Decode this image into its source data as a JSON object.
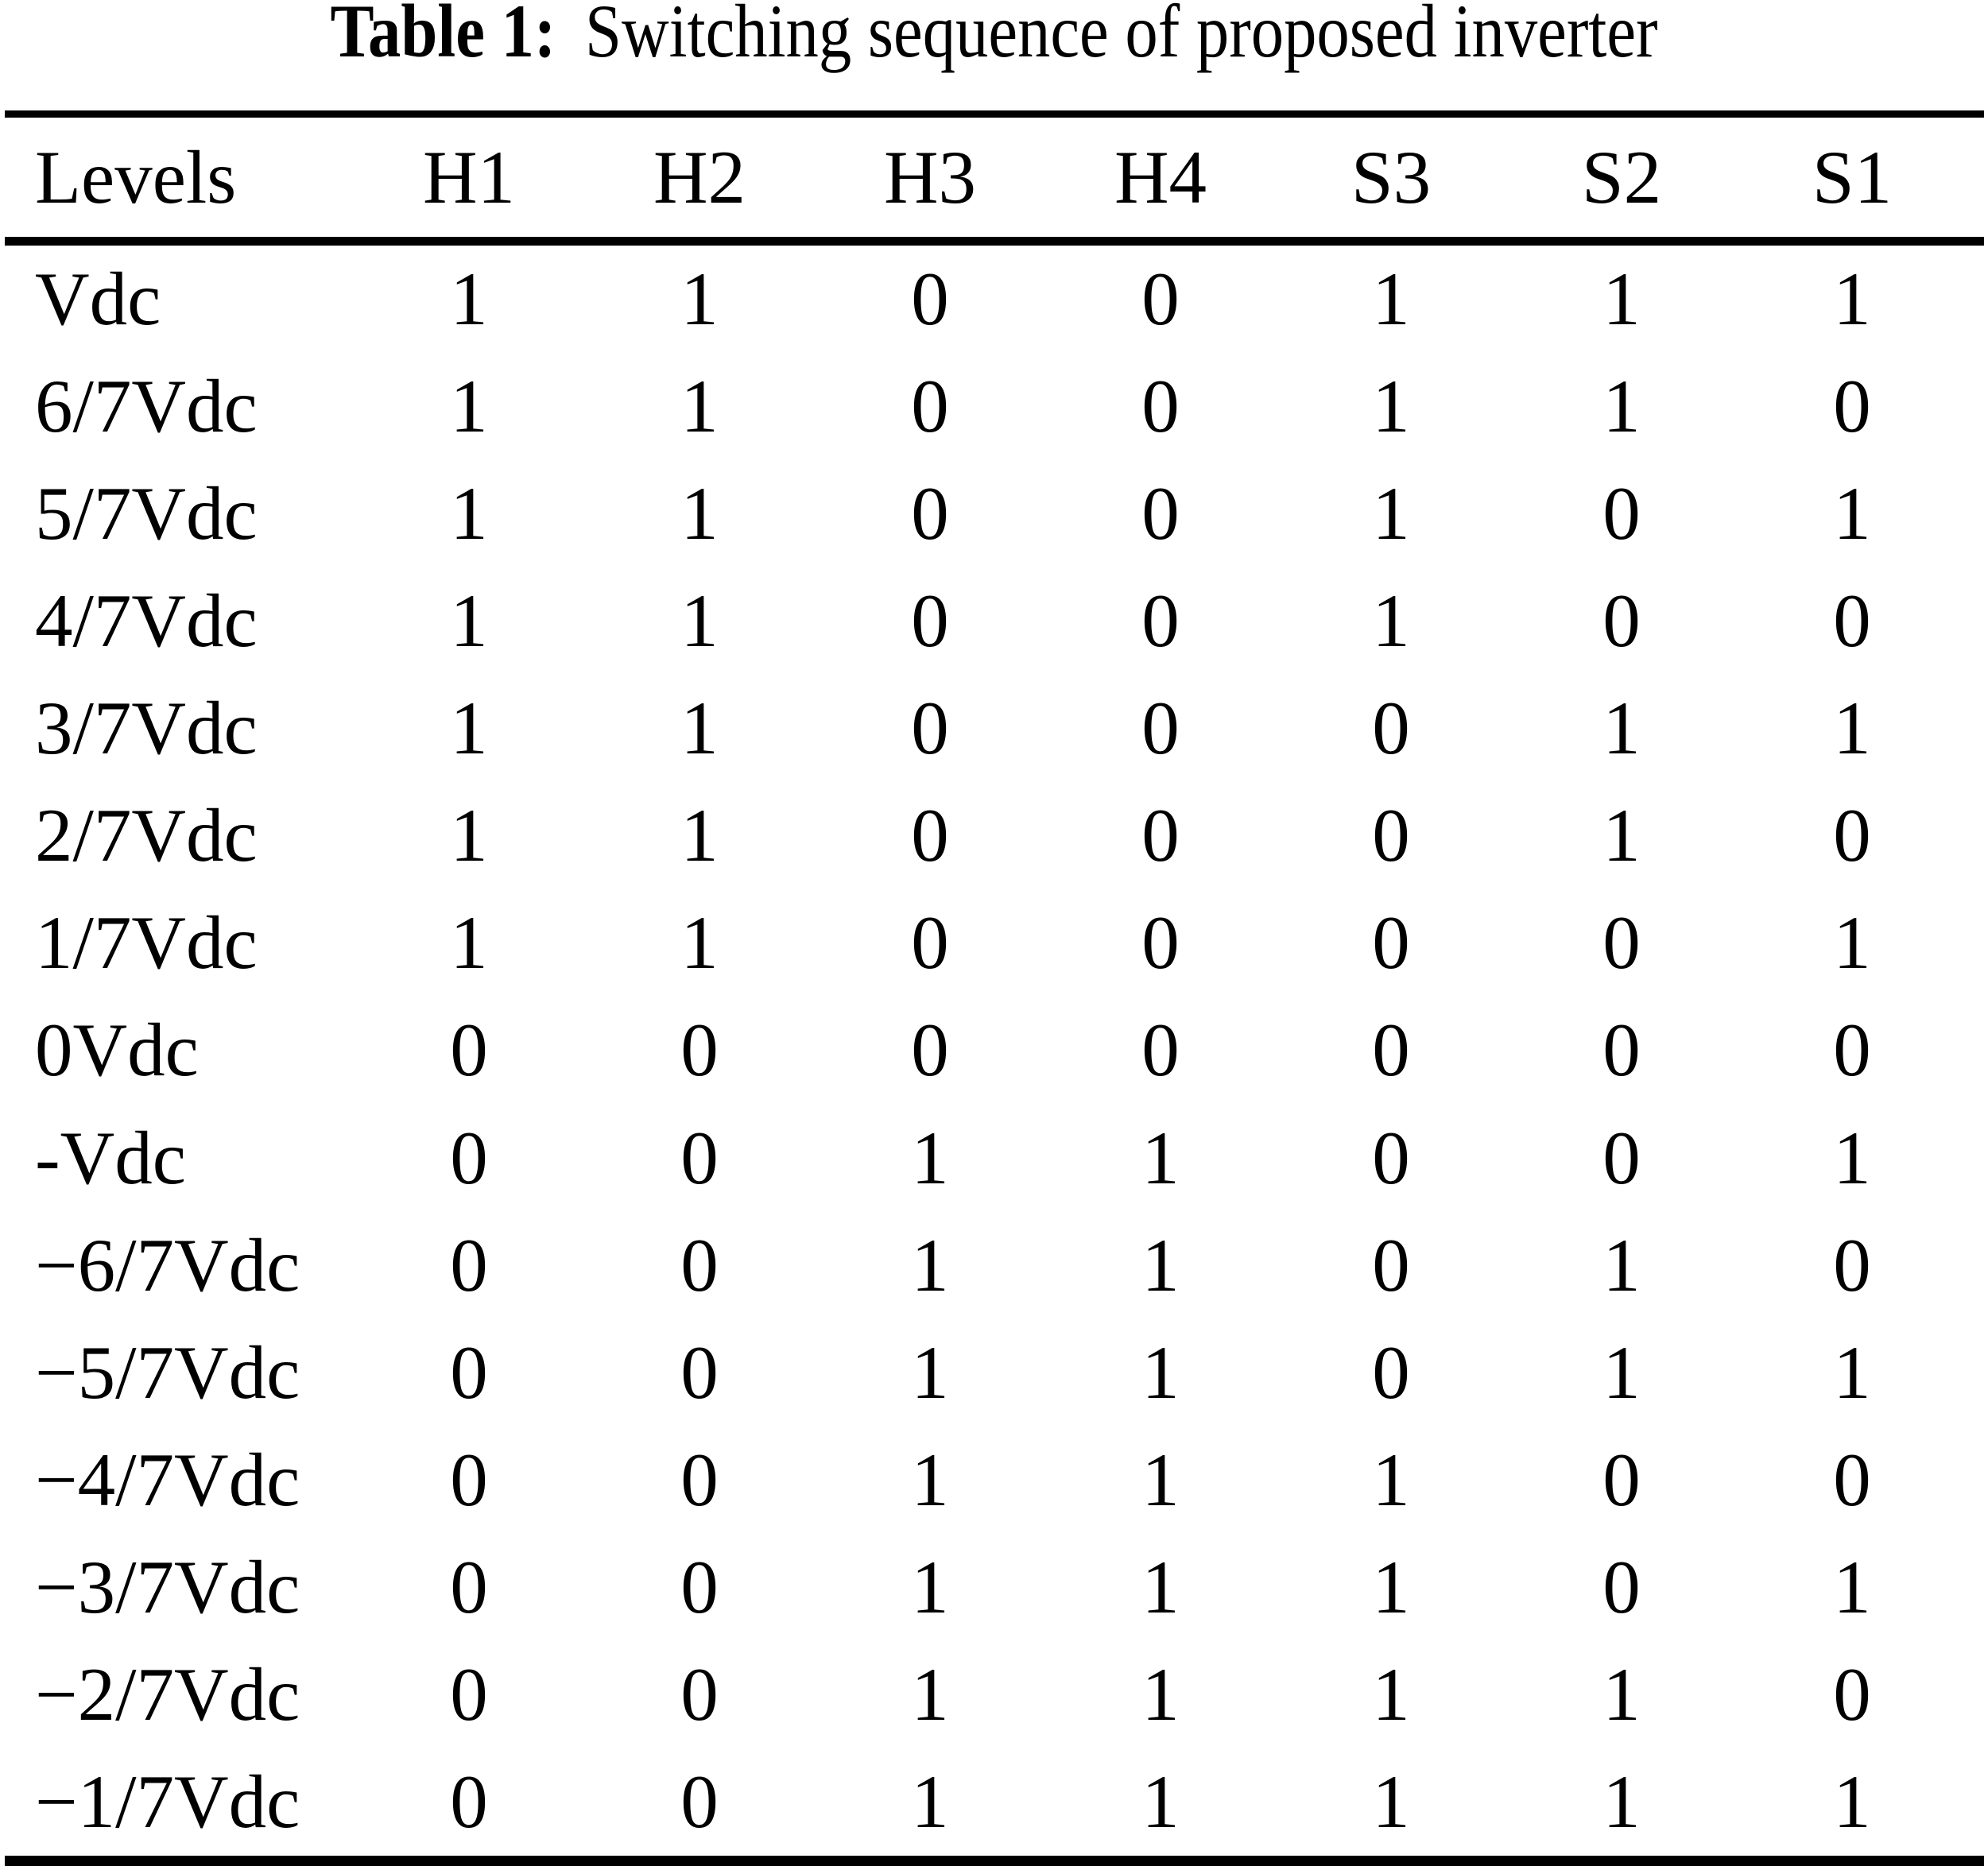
{
  "title": {
    "label": "Table 1:",
    "text": "Switching sequence of proposed inverter"
  },
  "table": {
    "columns": [
      "Levels",
      "H1",
      "H2",
      "H3",
      "H4",
      "S3",
      "S2",
      "S1"
    ],
    "rows": [
      {
        "level": "Vdc",
        "values": [
          "1",
          "1",
          "0",
          "0",
          "1",
          "1",
          "1"
        ]
      },
      {
        "level": "6/7Vdc",
        "values": [
          "1",
          "1",
          "0",
          "0",
          "1",
          "1",
          "0"
        ]
      },
      {
        "level": "5/7Vdc",
        "values": [
          "1",
          "1",
          "0",
          "0",
          "1",
          "0",
          "1"
        ]
      },
      {
        "level": "4/7Vdc",
        "values": [
          "1",
          "1",
          "0",
          "0",
          "1",
          "0",
          "0"
        ]
      },
      {
        "level": "3/7Vdc",
        "values": [
          "1",
          "1",
          "0",
          "0",
          "0",
          "1",
          "1"
        ]
      },
      {
        "level": "2/7Vdc",
        "values": [
          "1",
          "1",
          "0",
          "0",
          "0",
          "1",
          "0"
        ]
      },
      {
        "level": "1/7Vdc",
        "values": [
          "1",
          "1",
          "0",
          "0",
          "0",
          "0",
          "1"
        ]
      },
      {
        "level": "0Vdc",
        "values": [
          "0",
          "0",
          "0",
          "0",
          "0",
          "0",
          "0"
        ]
      },
      {
        "level": "-Vdc",
        "values": [
          "0",
          "0",
          "1",
          "1",
          "0",
          "0",
          "1"
        ]
      },
      {
        "level": "−6/7Vdc",
        "values": [
          "0",
          "0",
          "1",
          "1",
          "0",
          "1",
          "0"
        ]
      },
      {
        "level": "−5/7Vdc",
        "values": [
          "0",
          "0",
          "1",
          "1",
          "0",
          "1",
          "1"
        ]
      },
      {
        "level": "−4/7Vdc",
        "values": [
          "0",
          "0",
          "1",
          "1",
          "1",
          "0",
          "0"
        ]
      },
      {
        "level": "−3/7Vdc",
        "values": [
          "0",
          "0",
          "1",
          "1",
          "1",
          "0",
          "1"
        ]
      },
      {
        "level": "−2/7Vdc",
        "values": [
          "0",
          "0",
          "1",
          "1",
          "1",
          "1",
          "0"
        ]
      },
      {
        "level": "−1/7Vdc",
        "values": [
          "0",
          "0",
          "1",
          "1",
          "1",
          "1",
          "1"
        ]
      }
    ]
  },
  "colors": {
    "background": "#ffffff",
    "text": "#000000",
    "rule": "#000000"
  }
}
